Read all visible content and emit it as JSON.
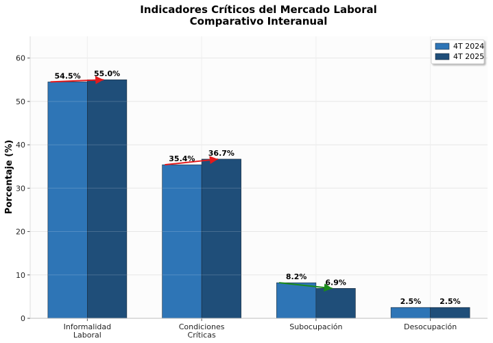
{
  "chart_data": {
    "type": "bar",
    "title": "Indicadores Críticos del Mercado Laboral",
    "subtitle": "Comparativo Interanual",
    "xlabel": "",
    "ylabel": "Porcentaje (%)",
    "ylim": [
      0,
      65
    ],
    "yticks": [
      0,
      10,
      20,
      30,
      40,
      50,
      60
    ],
    "grid": true,
    "legend_position": "top-right",
    "categories": [
      "Informalidad\nLaboral",
      "Condiciones\nCríticas",
      "Subocupación",
      "Desocupación"
    ],
    "series": [
      {
        "name": "4T 2024",
        "values": [
          54.5,
          35.4,
          8.2,
          2.5
        ],
        "labels": [
          "54.5%",
          "35.4%",
          "8.2%",
          "2.5%"
        ],
        "color": "#2e75b6"
      },
      {
        "name": "4T 2025",
        "values": [
          55.0,
          36.7,
          6.9,
          2.5
        ],
        "labels": [
          "55.0%",
          "36.7%",
          "6.9%",
          "2.5%"
        ],
        "color": "#1f4e79"
      }
    ],
    "annotations": {
      "arrows": [
        {
          "category": "Informalidad\nLaboral",
          "from": 54.5,
          "to": 55.0,
          "color": "#e31a1c"
        },
        {
          "category": "Condiciones\nCríticas",
          "from": 35.4,
          "to": 36.7,
          "color": "#e31a1c"
        },
        {
          "category": "Subocupación",
          "from": 8.2,
          "to": 6.9,
          "color": "#1a8a1a"
        }
      ]
    }
  }
}
